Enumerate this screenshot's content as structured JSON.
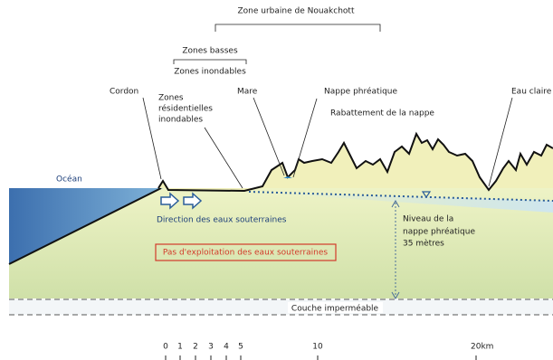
{
  "zones": {
    "urban": "Zone urbaine de Nouakchott",
    "low": "Zones basses",
    "flood": "Zones inondables"
  },
  "labels": {
    "cordon": "Cordon",
    "residential": [
      "Zones",
      "résidentielles",
      "inondables"
    ],
    "mare": "Mare",
    "nappe": "Nappe phréatique",
    "rabattement": "Rabattement de la nappe",
    "eau": "Eau claire",
    "ocean": "Océan",
    "direction": "Direction des eaux souterraines",
    "warning": "Pas d'exploitation des eaux souterraines",
    "niveau": [
      "Niveau de la",
      "nappe phréatique",
      "35 mètres"
    ],
    "couche": "Couche imperméable"
  },
  "scale": [
    "0",
    "1",
    "2",
    "3",
    "4",
    "5",
    "10",
    "20km"
  ]
}
